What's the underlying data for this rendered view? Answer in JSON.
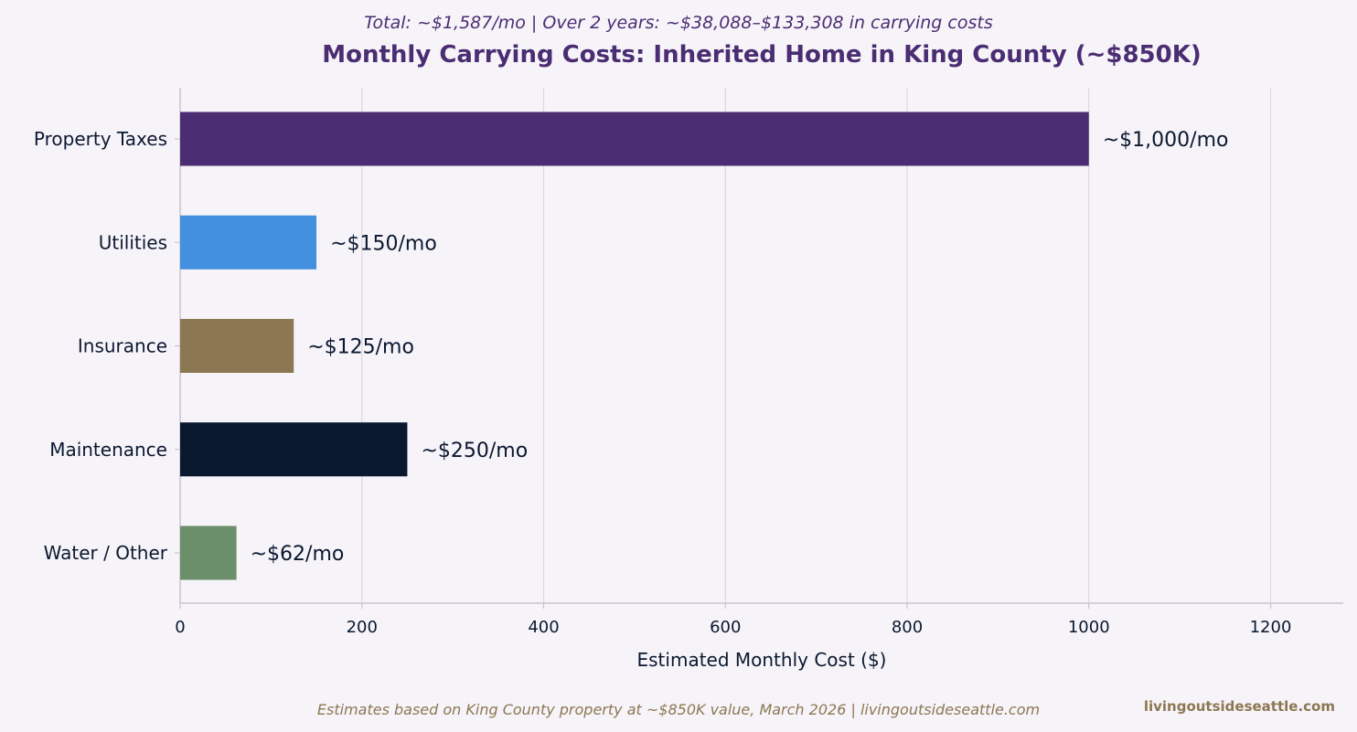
{
  "chart_data": {
    "type": "bar",
    "orientation": "horizontal",
    "title": "Monthly Carrying Costs: Inherited Home in King County (~$850K)",
    "subtitle": "Total: ~$1,587/mo  |  Over 2 years: ~$38,088–$133,308 in carrying costs",
    "xlabel": "Estimated Monthly Cost ($)",
    "ylabel": "",
    "xlim": [
      0,
      1280
    ],
    "xticks": [
      0,
      200,
      400,
      600,
      800,
      1000,
      1200
    ],
    "grid": "vertical",
    "categories": [
      "Property Taxes",
      "Utilities",
      "Insurance",
      "Maintenance",
      "Water / Other"
    ],
    "values": [
      1000,
      150,
      125,
      250,
      62
    ],
    "data_labels": [
      "~$1,000/mo",
      "~$150/mo",
      "~$125/mo",
      "~$250/mo",
      "~$62/mo"
    ],
    "colors": [
      "#4a2d72",
      "#4390de",
      "#8b7752",
      "#0a1830",
      "#6b8f6b"
    ]
  },
  "footnote": "Estimates based on King County property at ~$850K value, March 2026  |  livingoutsideseattle.com",
  "watermark": "livingoutsideseattle.com",
  "colors": {
    "title": "#4a2d72",
    "subtitle": "#4a2d72",
    "footnote": "#8b7752",
    "text": "#0a1830",
    "grid": "#dcd8e0",
    "axis": "#c8c4cc",
    "background": "#f7f4f9"
  }
}
